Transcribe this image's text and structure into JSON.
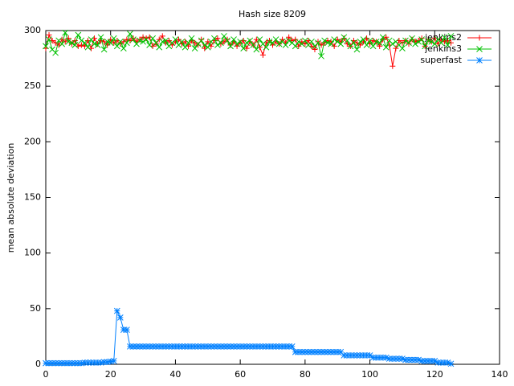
{
  "chart_data": {
    "type": "line",
    "title": "Hash size 8209",
    "ylabel": "mean absolute deviation",
    "x": [
      0,
      1,
      2,
      3,
      4,
      5,
      6,
      7,
      8,
      9,
      10,
      11,
      12,
      13,
      14,
      15,
      16,
      17,
      18,
      19,
      20,
      21,
      22,
      23,
      24,
      25,
      26,
      27,
      28,
      29,
      30,
      31,
      32,
      33,
      34,
      35,
      36,
      37,
      38,
      39,
      40,
      41,
      42,
      43,
      44,
      45,
      46,
      47,
      48,
      49,
      50,
      51,
      52,
      53,
      54,
      55,
      56,
      57,
      58,
      59,
      60,
      61,
      62,
      63,
      64,
      65,
      66,
      67,
      68,
      69,
      70,
      71,
      72,
      73,
      74,
      75,
      76,
      77,
      78,
      79,
      80,
      81,
      82,
      83,
      84,
      85,
      86,
      87,
      88,
      89,
      90,
      91,
      92,
      93,
      94,
      95,
      96,
      97,
      98,
      99,
      100,
      101,
      102,
      103,
      104,
      105,
      106,
      107,
      108,
      109,
      110,
      111,
      112,
      113,
      114,
      115,
      116,
      117,
      118,
      119,
      120,
      121,
      122,
      123,
      124,
      125
    ],
    "series": [
      {
        "name": "jenkins2",
        "color": "#ff0000",
        "marker": "plus",
        "values": [
          284,
          296,
          291,
          289,
          287,
          292,
          290,
          293,
          288,
          291,
          286,
          287,
          286,
          291,
          284,
          293,
          288,
          291,
          290,
          287,
          292,
          289,
          291,
          288,
          290,
          292,
          291,
          293,
          290,
          292,
          294,
          293,
          294,
          286,
          288,
          292,
          295,
          289,
          291,
          287,
          290,
          292,
          288,
          290,
          286,
          291,
          289,
          287,
          292,
          284,
          290,
          286,
          291,
          293,
          288,
          290,
          292,
          287,
          290,
          286,
          289,
          291,
          284,
          290,
          287,
          292,
          285,
          278,
          289,
          291,
          287,
          290,
          288,
          292,
          289,
          294,
          291,
          292,
          286,
          290,
          288,
          291,
          286,
          283,
          290,
          287,
          289,
          291,
          290,
          286,
          292,
          290,
          293,
          288,
          286,
          291,
          289,
          287,
          290,
          293,
          288,
          291,
          290,
          286,
          292,
          294,
          287,
          268,
          284,
          291,
          289,
          291,
          288,
          292,
          290,
          291,
          293,
          286,
          292,
          290,
          293,
          288,
          292,
          290,
          291,
          289
        ]
      },
      {
        "name": "jenkins3",
        "color": "#00c000",
        "marker": "cross",
        "values": [
          286,
          292,
          283,
          280,
          291,
          288,
          298,
          290,
          289,
          287,
          296,
          291,
          289,
          285,
          292,
          288,
          287,
          294,
          283,
          290,
          289,
          293,
          286,
          290,
          284,
          289,
          297,
          292,
          288,
          291,
          290,
          292,
          287,
          293,
          289,
          285,
          290,
          291,
          286,
          289,
          292,
          287,
          290,
          285,
          289,
          293,
          284,
          288,
          291,
          287,
          285,
          290,
          293,
          287,
          289,
          295,
          291,
          286,
          292,
          288,
          290,
          284,
          289,
          291,
          287,
          283,
          292,
          288,
          285,
          290,
          289,
          292,
          288,
          290,
          287,
          291,
          289,
          286,
          290,
          288,
          291,
          287,
          290,
          286,
          289,
          277,
          291,
          289,
          288,
          292,
          290,
          288,
          294,
          291,
          286,
          289,
          283,
          290,
          292,
          287,
          291,
          286,
          290,
          289,
          294,
          285,
          291,
          288,
          290,
          287,
          284,
          291,
          289,
          293,
          288,
          290,
          292,
          286,
          291,
          290,
          288,
          292,
          289,
          294,
          287,
          295
        ]
      },
      {
        "name": "superfast",
        "color": "#0080ff",
        "marker": "star",
        "values": [
          1,
          1,
          1,
          1,
          1,
          1,
          1,
          1,
          1,
          1,
          1,
          1,
          1.5,
          1.5,
          1.5,
          1.5,
          1.5,
          1.5,
          2,
          2,
          2.5,
          3,
          48,
          42,
          31,
          31,
          16,
          16,
          16,
          16,
          16,
          16,
          16,
          16,
          16,
          16,
          16,
          16,
          16,
          16,
          16,
          16,
          16,
          16,
          16,
          16,
          16,
          16,
          16,
          16,
          16,
          16,
          16,
          16,
          16,
          16,
          16,
          16,
          16,
          16,
          16,
          16,
          16,
          16,
          16,
          16,
          16,
          16,
          16,
          16,
          16,
          16,
          16,
          16,
          16,
          16,
          16,
          11,
          11,
          11,
          11,
          11,
          11,
          11,
          11,
          11,
          11,
          11,
          11,
          11,
          11,
          11,
          8,
          8,
          8,
          8,
          8,
          8,
          8,
          8,
          8,
          6,
          6,
          6,
          6,
          6,
          5,
          5,
          5,
          5,
          5,
          4,
          4,
          4,
          4,
          4,
          3,
          3,
          3,
          3,
          3,
          1.5,
          1.5,
          1.5,
          1.5,
          0.5
        ]
      }
    ],
    "xlim": [
      0,
      140
    ],
    "xticks": [
      0,
      20,
      40,
      60,
      80,
      100,
      120,
      140
    ],
    "ylim": [
      0,
      300
    ],
    "yticks": [
      0,
      50,
      100,
      150,
      200,
      250,
      300
    ],
    "legend": "top-right"
  }
}
